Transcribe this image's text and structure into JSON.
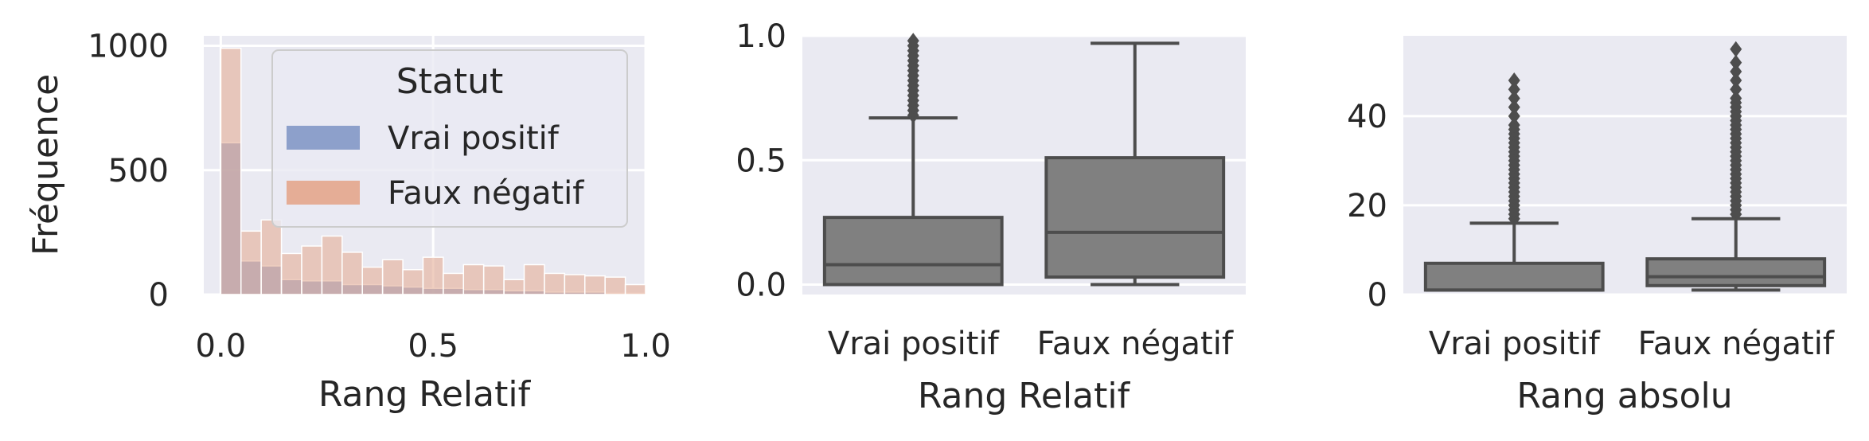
{
  "chart_data": [
    {
      "type": "histogram",
      "xlabel": "Rang Relatif",
      "ylabel": "Fréquence",
      "xlim": [
        -0.04,
        1.0
      ],
      "ylim": [
        0,
        1040
      ],
      "xticks": [
        {
          "v": 0.0,
          "label": "0.0"
        },
        {
          "v": 0.5,
          "label": "0.5"
        },
        {
          "v": 1.0,
          "label": "1.0"
        }
      ],
      "yticks": [
        {
          "v": 0,
          "label": "0"
        },
        {
          "v": 500,
          "label": "500"
        },
        {
          "v": 1000,
          "label": "1000"
        }
      ],
      "bin_width": 0.0476,
      "bins_start": [
        0.0,
        0.0476,
        0.0952,
        0.1429,
        0.1905,
        0.2381,
        0.2857,
        0.3333,
        0.381,
        0.4286,
        0.4762,
        0.5238,
        0.5714,
        0.619,
        0.6667,
        0.7143,
        0.7619,
        0.8095,
        0.8571,
        0.9048,
        0.9524
      ],
      "series": [
        {
          "name": "Vrai positif",
          "color": "#8da0cb",
          "values": [
            610,
            135,
            115,
            60,
            55,
            55,
            40,
            40,
            35,
            30,
            25,
            25,
            20,
            20,
            15,
            15,
            10,
            10,
            10,
            5,
            5
          ]
        },
        {
          "name": "Faux négatif",
          "color": "#e5ad96",
          "values": [
            990,
            255,
            300,
            165,
            195,
            235,
            170,
            110,
            140,
            100,
            150,
            85,
            120,
            115,
            60,
            120,
            85,
            80,
            75,
            70,
            40
          ]
        }
      ],
      "legend": {
        "title": "Statut",
        "placement": "upper-right"
      }
    },
    {
      "type": "box",
      "xlabel": "Rang Relatif",
      "ylim": [
        -0.04,
        1.0
      ],
      "yticks": [
        {
          "v": 0.0,
          "label": "0.0"
        },
        {
          "v": 0.5,
          "label": "0.5"
        },
        {
          "v": 1.0,
          "label": "1.0"
        }
      ],
      "categories": [
        "Vrai positif",
        "Faux négatif"
      ],
      "boxes": [
        {
          "category": "Vrai positif",
          "q1": 0.0,
          "median": 0.08,
          "q3": 0.27,
          "whisker_low": 0.0,
          "whisker_high": 0.67,
          "outliers": [
            0.68,
            0.7,
            0.72,
            0.74,
            0.76,
            0.78,
            0.8,
            0.82,
            0.84,
            0.86,
            0.88,
            0.9,
            0.92,
            0.94,
            0.96,
            0.98
          ]
        },
        {
          "category": "Faux négatif",
          "q1": 0.03,
          "median": 0.21,
          "q3": 0.51,
          "whisker_low": 0.0,
          "whisker_high": 0.97,
          "outliers": []
        }
      ],
      "color": "#808080"
    },
    {
      "type": "box",
      "xlabel": "Rang absolu",
      "ylim": [
        0,
        58
      ],
      "yticks": [
        {
          "v": 0,
          "label": "0"
        },
        {
          "v": 20,
          "label": "20"
        },
        {
          "v": 40,
          "label": "40"
        }
      ],
      "categories": [
        "Vrai positif",
        "Faux négatif"
      ],
      "boxes": [
        {
          "category": "Vrai positif",
          "q1": 1,
          "median": 1,
          "q3": 7,
          "whisker_low": 1,
          "whisker_high": 16,
          "outliers": [
            17,
            18,
            19,
            20,
            21,
            22,
            23,
            24,
            25,
            26,
            27,
            28,
            29,
            30,
            31,
            32,
            33,
            34,
            35,
            36,
            37,
            38,
            40,
            42,
            44,
            46,
            48
          ]
        },
        {
          "category": "Faux négatif",
          "q1": 2,
          "median": 4,
          "q3": 8,
          "whisker_low": 1,
          "whisker_high": 17,
          "outliers": [
            18,
            19,
            20,
            21,
            22,
            23,
            24,
            25,
            26,
            27,
            28,
            29,
            30,
            31,
            32,
            33,
            34,
            35,
            36,
            37,
            38,
            39,
            40,
            41,
            42,
            43,
            44,
            46,
            48,
            50,
            52,
            55
          ]
        }
      ],
      "color": "#808080"
    }
  ]
}
